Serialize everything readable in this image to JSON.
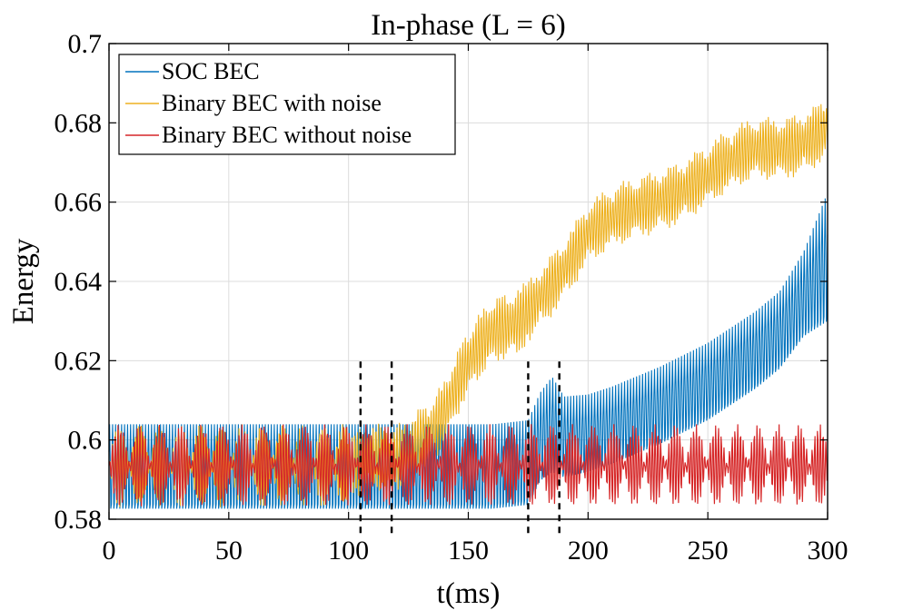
{
  "chart_data": {
    "type": "line",
    "title": "In-phase (L = 6)",
    "xlabel": "t(ms)",
    "ylabel": "Energy",
    "xlim": [
      0,
      300
    ],
    "ylim": [
      0.58,
      0.7
    ],
    "xticks": [
      0,
      50,
      100,
      150,
      200,
      250,
      300
    ],
    "xtick_labels": [
      "0",
      "50",
      "100",
      "150",
      "200",
      "250",
      "300"
    ],
    "yticks": [
      0.58,
      0.6,
      0.62,
      0.64,
      0.66,
      0.68,
      0.7
    ],
    "ytick_labels": [
      "0.58",
      "0.6",
      "0.62",
      "0.64",
      "0.66",
      "0.68",
      "0.7"
    ],
    "grid": true,
    "legend_position": "top-left",
    "vertical_markers": {
      "style": "dashed",
      "color": "#000000",
      "x": [
        105,
        118,
        175,
        188
      ],
      "y_range": [
        0.5765,
        0.6205
      ]
    },
    "series": [
      {
        "name": "SOC BEC",
        "color": "#0072BD",
        "description_points": {
          "t": [
            0,
            20,
            40,
            60,
            80,
            100,
            120,
            140,
            160,
            175,
            180,
            185,
            190,
            200,
            210,
            220,
            230,
            240,
            250,
            260,
            270,
            280,
            290,
            300
          ],
          "center": [
            0.5925,
            0.5925,
            0.5925,
            0.5925,
            0.5925,
            0.5925,
            0.5925,
            0.5925,
            0.5925,
            0.5935,
            0.6,
            0.603,
            0.6,
            0.601,
            0.603,
            0.6055,
            0.608,
            0.611,
            0.614,
            0.618,
            0.622,
            0.627,
            0.636,
            0.645
          ],
          "half_amplitude": [
            0.0115,
            0.0115,
            0.0115,
            0.0115,
            0.0115,
            0.0115,
            0.0115,
            0.0115,
            0.0115,
            0.0115,
            0.012,
            0.013,
            0.011,
            0.0105,
            0.0105,
            0.0105,
            0.0105,
            0.0105,
            0.0105,
            0.0105,
            0.0105,
            0.0105,
            0.0115,
            0.0175
          ]
        }
      },
      {
        "name": "Binary BEC with noise",
        "color": "#EDB120",
        "description_points": {
          "t": [
            0,
            100,
            105,
            110,
            118,
            125,
            130,
            135,
            140,
            150,
            160,
            170,
            180,
            190,
            200,
            210,
            220,
            230,
            240,
            250,
            260,
            270,
            280,
            290,
            300
          ],
          "center": [
            0.5935,
            0.5935,
            0.5945,
            0.596,
            0.595,
            0.597,
            0.6,
            0.602,
            0.607,
            0.618,
            0.626,
            0.63,
            0.638,
            0.644,
            0.651,
            0.654,
            0.658,
            0.662,
            0.665,
            0.667,
            0.669,
            0.672,
            0.674,
            0.677,
            0.68
          ]
        }
      },
      {
        "name": "Binary BEC without noise",
        "color": "#D62728",
        "description_points": {
          "t": [
            0,
            300
          ],
          "center": [
            0.5935,
            0.5935
          ],
          "half_amplitude": [
            0.0105,
            0.0105
          ]
        }
      }
    ]
  }
}
